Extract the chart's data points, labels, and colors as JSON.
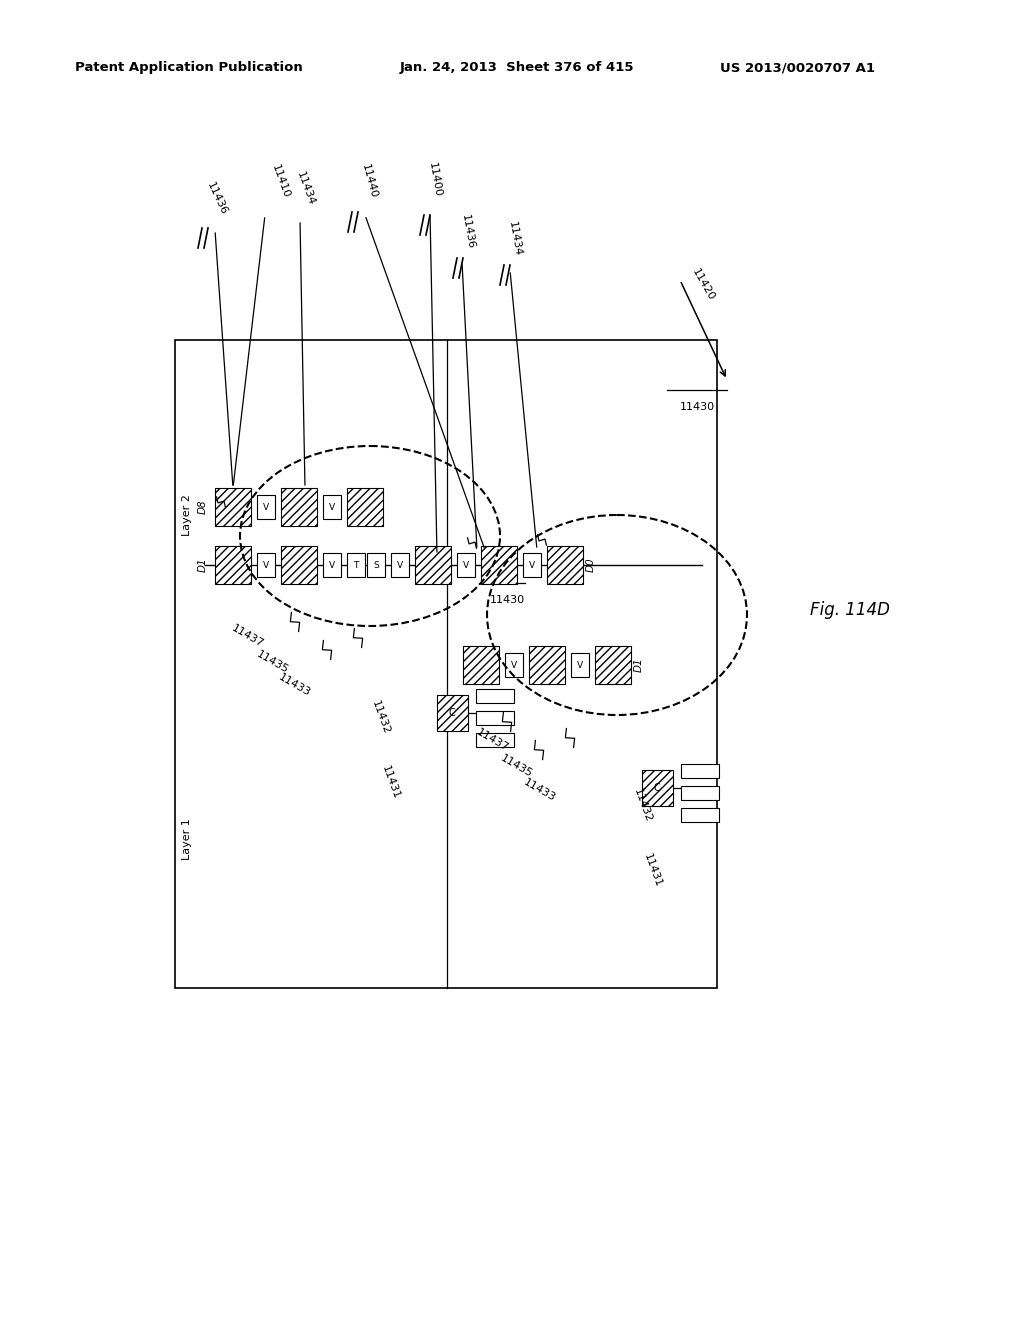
{
  "header_left": "Patent Application Publication",
  "header_mid": "Jan. 24, 2013  Sheet 376 of 415",
  "header_right": "US 2013/0020707 A1",
  "fig_label": "Fig. 114D",
  "background": "#ffffff"
}
